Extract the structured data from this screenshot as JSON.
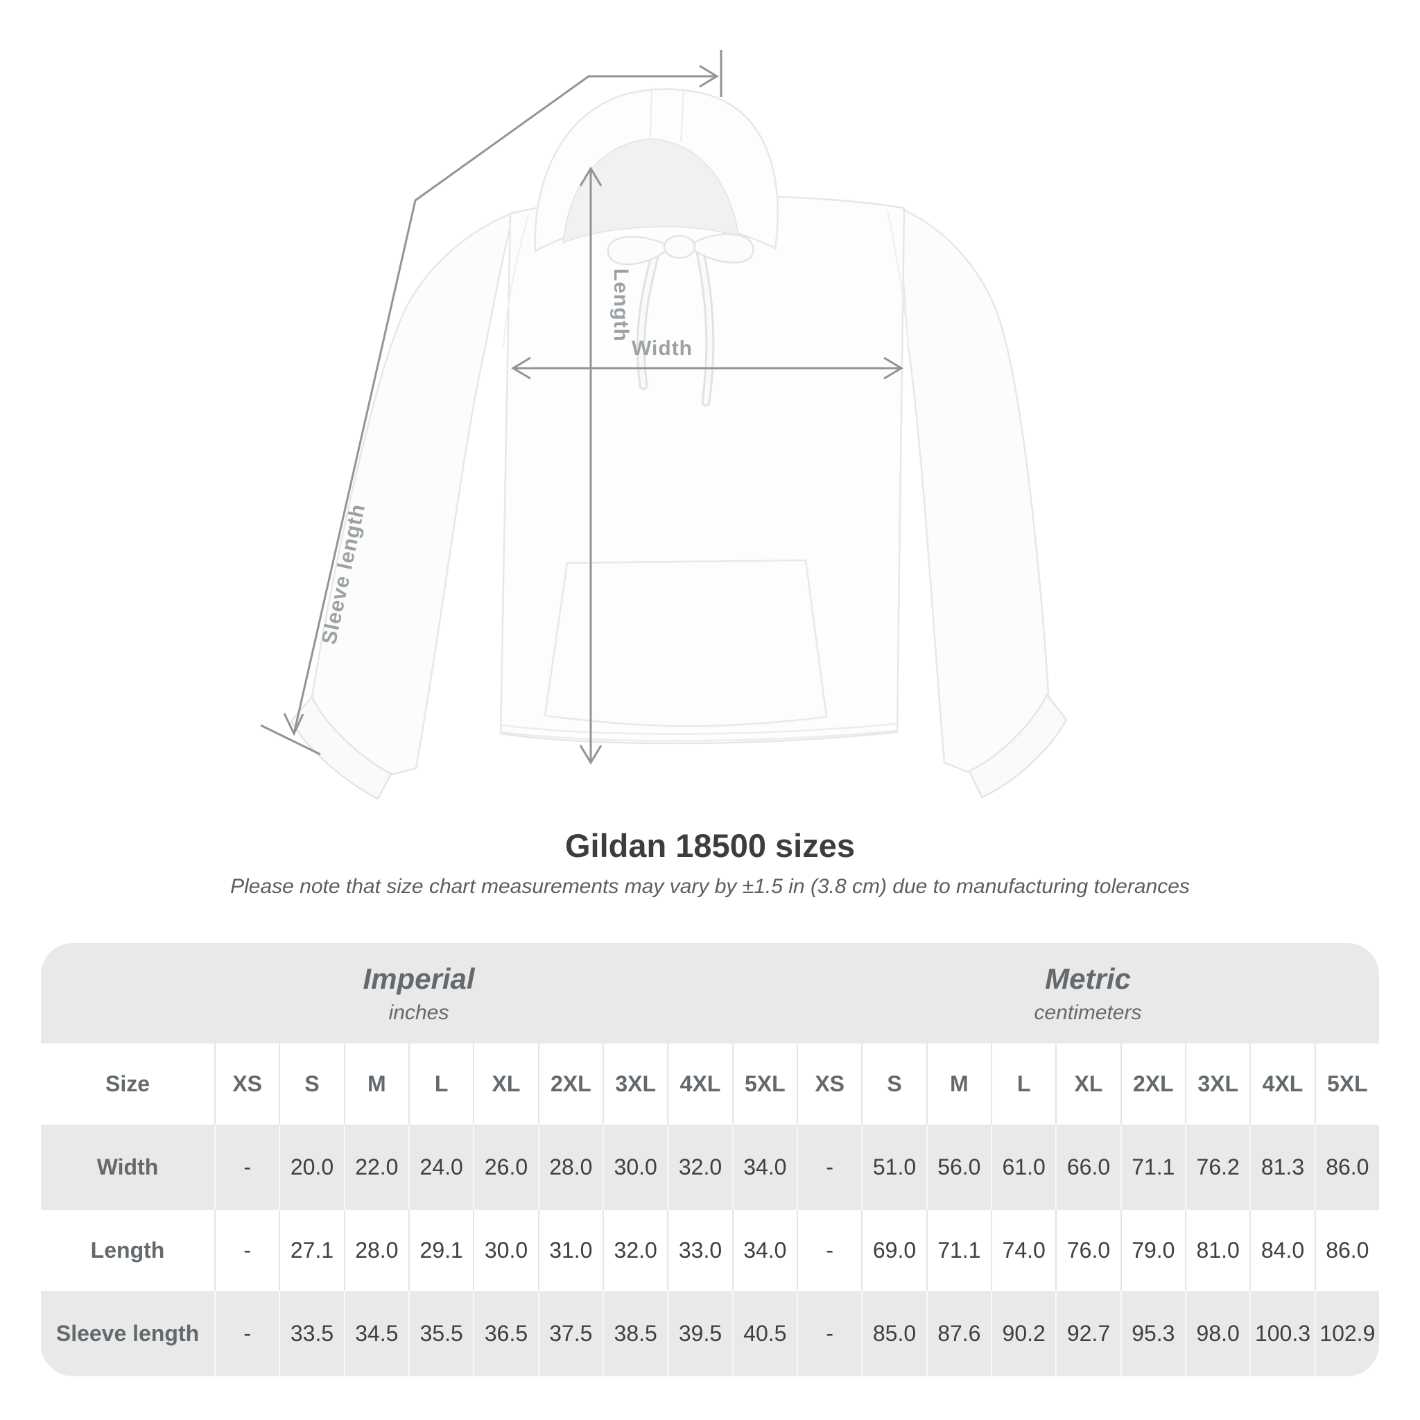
{
  "title": "Gildan 18500 sizes",
  "subtitle": "Please note that size chart measurements may vary by ±1.5 in (3.8 cm) due to manufacturing tolerances",
  "diagram": {
    "labels": {
      "sleeve": "Sleeve length",
      "length": "Length",
      "width": "Width"
    },
    "line_color": "#8f9598",
    "label_color": "#9ba1a4"
  },
  "chart_data": {
    "type": "table",
    "title": "Gildan 18500 sizes",
    "note": "Please note that size chart measurements may vary by ±1.5 in (3.8 cm) due to manufacturing tolerances",
    "unit_groups": [
      {
        "name": "Imperial",
        "unit": "inches"
      },
      {
        "name": "Metric",
        "unit": "centimeters"
      }
    ],
    "size_label": "Size",
    "sizes": [
      "XS",
      "S",
      "M",
      "L",
      "XL",
      "2XL",
      "3XL",
      "4XL",
      "5XL"
    ],
    "rows": [
      {
        "label": "Width",
        "imperial": [
          "-",
          "20.0",
          "22.0",
          "24.0",
          "26.0",
          "28.0",
          "30.0",
          "32.0",
          "34.0"
        ],
        "metric": [
          "-",
          "51.0",
          "56.0",
          "61.0",
          "66.0",
          "71.1",
          "76.2",
          "81.3",
          "86.0"
        ]
      },
      {
        "label": "Length",
        "imperial": [
          "-",
          "27.1",
          "28.0",
          "29.1",
          "30.0",
          "31.0",
          "32.0",
          "33.0",
          "34.0"
        ],
        "metric": [
          "-",
          "69.0",
          "71.1",
          "74.0",
          "76.0",
          "79.0",
          "81.0",
          "84.0",
          "86.0"
        ]
      },
      {
        "label": "Sleeve length",
        "imperial": [
          "-",
          "33.5",
          "34.5",
          "35.5",
          "36.5",
          "37.5",
          "38.5",
          "39.5",
          "40.5"
        ],
        "metric": [
          "-",
          "85.0",
          "87.6",
          "90.2",
          "92.7",
          "95.3",
          "98.0",
          "100.3",
          "102.9"
        ]
      }
    ],
    "colors": {
      "band": "#e9e9e9",
      "value_text": "#3d4043",
      "header_text": "#63696c"
    }
  }
}
